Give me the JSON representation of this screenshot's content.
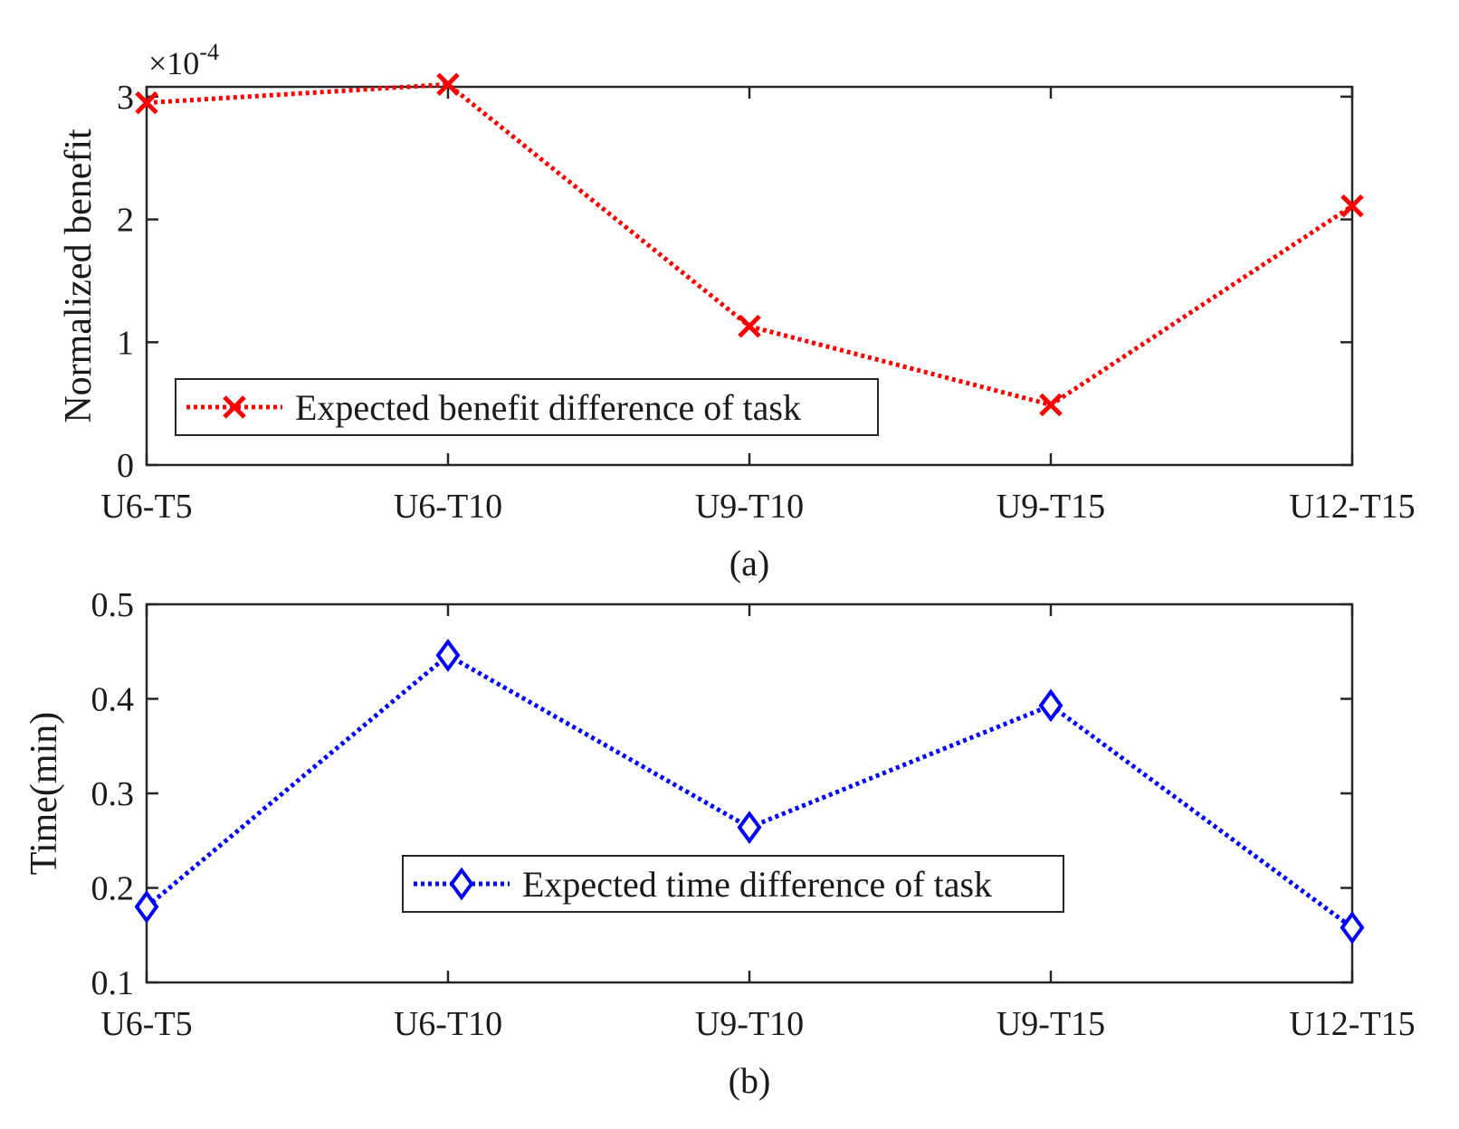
{
  "chart_data": [
    {
      "type": "line",
      "caption": "(a)",
      "categories": [
        "U6-T5",
        "U6-T10",
        "U9-T10",
        "U9-T15",
        "U12-T15"
      ],
      "series": [
        {
          "name": "Expected benefit difference of task",
          "values": [
            0.000295,
            0.00031,
            0.000113,
            4.9e-05,
            0.000211
          ],
          "color": "#ff0000",
          "marker": "x",
          "line_style": "dotted"
        }
      ],
      "ylabel": "Normalized benefit",
      "xlabel": "",
      "ylim": [
        0,
        0.0003
      ],
      "y_display_max": 3.08,
      "yticks": [
        0,
        1,
        2,
        3
      ],
      "ytick_labels": [
        "0",
        "1",
        "2",
        "3"
      ],
      "exponent": {
        "prefix": "×10",
        "power": "-4"
      },
      "legend_loc": "bottom-left",
      "grid": false
    },
    {
      "type": "line",
      "caption": "(b)",
      "categories": [
        "U6-T5",
        "U6-T10",
        "U9-T10",
        "U9-T15",
        "U12-T15"
      ],
      "series": [
        {
          "name": "Expected time difference of task",
          "values": [
            0.18,
            0.446,
            0.264,
            0.393,
            0.158
          ],
          "color": "#0000ff",
          "marker": "diamond",
          "line_style": "dotted"
        }
      ],
      "ylabel": "Time(min)",
      "xlabel": "",
      "ylim": [
        0.1,
        0.5
      ],
      "yticks": [
        0.1,
        0.2,
        0.3,
        0.4,
        0.5
      ],
      "ytick_labels": [
        "0.1",
        "0.2",
        "0.3",
        "0.4",
        "0.5"
      ],
      "legend_loc": "bottom-center",
      "grid": false
    }
  ]
}
